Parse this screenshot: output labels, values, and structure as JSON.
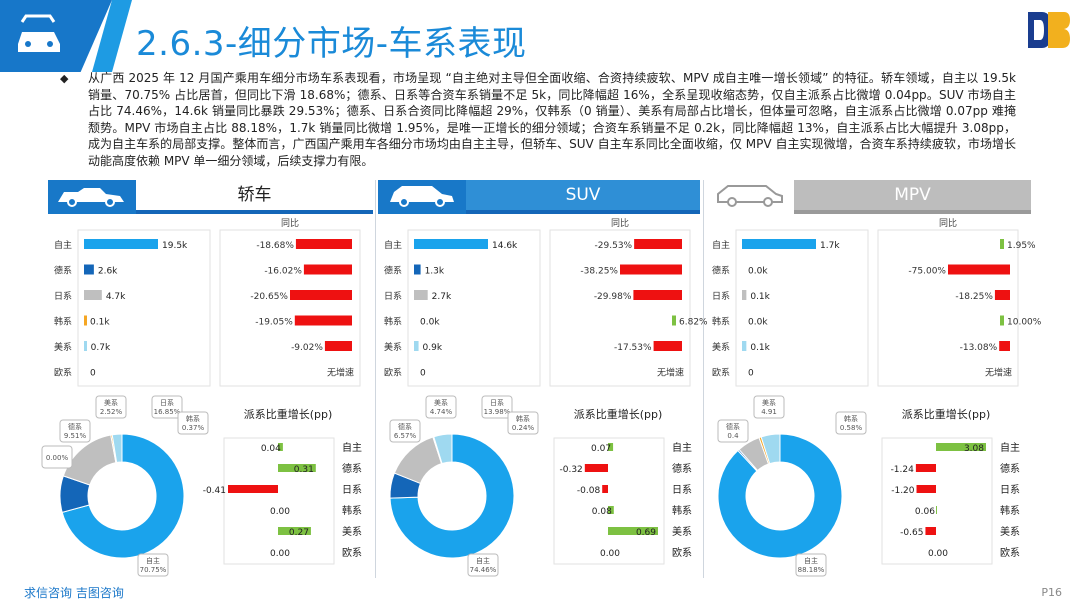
{
  "header": {
    "title": "2.6.3-细分市场-车系表现",
    "logo_text": "DB"
  },
  "summary": "从广西 2025 年 12 月国产乘用车细分市场车系表现看，市场呈现 “自主绝对主导但全面收缩、合资持续疲软、MPV 成自主唯一增长领域” 的特征。轿车领域，自主以 19.5k 销量、70.75% 占比居首，但同比下滑 18.68%；德系、日系等合资车系销量不足 5k，同比降幅超 16%，全系呈现收缩态势，仅自主派系占比微增 0.04pp。SUV 市场自主占比 74.46%，14.6k 销量同比暴跌 29.53%；德系、日系合资同比降幅超 29%，仅韩系（0 销量）、美系有局部占比增长，但体量可忽略，自主派系占比微增 0.07pp 难掩颓势。MPV 市场自主占比 88.18%，1.7k 销量同比微增 1.95%，是唯一正增长的细分领域；合资车系销量不足 0.2k，同比降幅超 13%，自主派系占比大幅提升 3.08pp，成为自主车系的局部支撑。整体而言，广西国产乘用车各细分市场均由自主主导，但轿车、SUV 自主车系同比全面收缩，仅 MPV 自主实现微增，合资车系持续疲软，市场增长动能高度依赖 MPV 单一细分领域，后续支撑力有限。",
  "footer": {
    "link_text": "求信咨询  吉图咨询",
    "page": "P16"
  },
  "panel_labels": {
    "yoy_header": "同比",
    "share_change_title": "派系比重增长(pp)",
    "no_growth": "无增速"
  },
  "colors": {
    "accent": "#1a8ad8",
    "bar_blue": "#1aa3ec",
    "neg_red": "#ee1111",
    "pos_green": "#7dc142",
    "de_blue": "#1466b8",
    "ri_grey": "#bfbfbf",
    "han_orange": "#f5a623",
    "mei_lightblue": "#9fd9f0",
    "ou_grey": "#d9d9d9"
  },
  "chart_data": [
    {
      "type": "bar",
      "segment": "轿车",
      "categories": [
        "自主",
        "德系",
        "日系",
        "韩系",
        "美系",
        "欧系"
      ],
      "sales": [
        19.5,
        2.6,
        4.7,
        0.1,
        0.7,
        0
      ],
      "sales_labels": [
        "19.5k",
        "2.6k",
        "4.7k",
        "0.1k",
        "0.7k",
        "0"
      ],
      "yoy": [
        -18.68,
        -16.02,
        -20.65,
        -19.05,
        -9.02,
        null
      ],
      "yoy_labels": [
        "-18.68%",
        "-16.02%",
        "-20.65%",
        "-19.05%",
        "-9.02%",
        "无增速"
      ],
      "share_labels": [
        "70.75%",
        "9.51%",
        "16.85%",
        "0.37%",
        "2.52%",
        "0.00%"
      ],
      "share": [
        70.75,
        9.51,
        16.85,
        0.37,
        2.52,
        0.0
      ],
      "share_change": [
        0.04,
        0.31,
        -0.41,
        0.0,
        0.27,
        0.0
      ],
      "share_change_labels": [
        "0.04",
        "0.31",
        "-0.41",
        "0.00",
        "0.27",
        "0.00"
      ]
    },
    {
      "type": "bar",
      "segment": "SUV",
      "categories": [
        "自主",
        "德系",
        "日系",
        "韩系",
        "美系",
        "欧系"
      ],
      "sales": [
        14.6,
        1.3,
        2.7,
        0.0,
        0.9,
        0
      ],
      "sales_labels": [
        "14.6k",
        "1.3k",
        "2.7k",
        "0.0k",
        "0.9k",
        "0"
      ],
      "yoy": [
        -29.53,
        -38.25,
        -29.98,
        6.82,
        -17.53,
        null
      ],
      "yoy_labels": [
        "-29.53%",
        "-38.25%",
        "-29.98%",
        "6.82%",
        "-17.53%",
        "无增速"
      ],
      "share_labels": [
        "74.46%",
        "6.57%",
        "13.98%",
        "0.24%",
        "4.74%",
        ""
      ],
      "share": [
        74.46,
        6.57,
        13.98,
        0.24,
        4.74,
        0
      ],
      "share_change": [
        0.07,
        -0.32,
        -0.08,
        0.08,
        0.69,
        0.0
      ],
      "share_change_labels": [
        "0.07",
        "-0.32",
        "-0.08",
        "0.08",
        "0.69",
        "0.00"
      ]
    },
    {
      "type": "bar",
      "segment": "MPV",
      "categories": [
        "自主",
        "德系",
        "日系",
        "韩系",
        "美系",
        "欧系"
      ],
      "sales": [
        1.7,
        0.0,
        0.1,
        0.0,
        0.1,
        0
      ],
      "sales_labels": [
        "1.7k",
        "0.0k",
        "0.1k",
        "0.0k",
        "0.1k",
        "0"
      ],
      "yoy": [
        1.95,
        -75.0,
        -18.25,
        10.0,
        -13.08,
        null
      ],
      "yoy_labels": [
        "1.95%",
        "-75.00%",
        "-18.25%",
        "10.00%",
        "-13.08%",
        "无增速"
      ],
      "share_labels": [
        "88.18%",
        "0.4",
        "",
        "0.58%",
        "4.91",
        ""
      ],
      "share": [
        88.18,
        0.4,
        6.0,
        0.58,
        4.91,
        0
      ],
      "share_change": [
        3.08,
        -1.24,
        -1.2,
        0.06,
        -0.65,
        0.0
      ],
      "share_change_labels": [
        "3.08",
        "-1.24",
        "-1.20",
        "0.06",
        "-0.65",
        "0.00"
      ]
    }
  ]
}
